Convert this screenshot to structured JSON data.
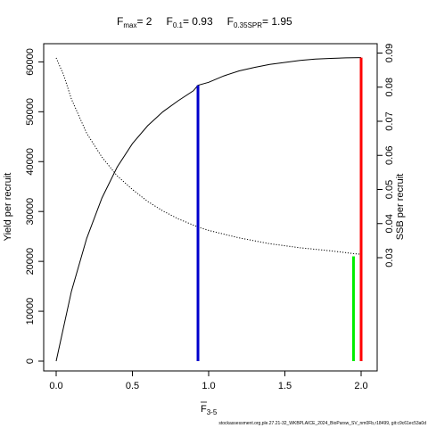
{
  "title": {
    "fmax_label": "F",
    "fmax_sub": "max",
    "fmax_value": "= 2",
    "f01_label": "F",
    "f01_sub": "0.1",
    "f01_value": "= 0.93",
    "fspr_label": "F",
    "fspr_sub": "0.35SPR",
    "fspr_value": "= 1.95"
  },
  "footer": "stockassessment.org,ple.27.21-32_WKBPLAICE_2024_BioParsw_SV_nm0Fb,r18499, git:c9c61ec53a0d",
  "colors": {
    "ypr_line": "#000000",
    "sspr_line": "#000000",
    "fmax": "#ff0000",
    "f01": "#0000cc",
    "fspr": "#00ee00"
  },
  "chart_data": {
    "type": "line",
    "xlabel_main": "F",
    "xlabel_sub": "3-5",
    "ylabel": "Yield per recruit",
    "y2label": "SSB per recruit",
    "xlim": [
      0,
      2
    ],
    "ylim": [
      0,
      61000
    ],
    "y2lim": [
      0,
      0.09
    ],
    "x_ticks": [
      "0.0",
      "0.5",
      "1.0",
      "1.5",
      "2.0"
    ],
    "x_tick_values": [
      0,
      0.5,
      1.0,
      1.5,
      2.0
    ],
    "y_ticks": [
      "0",
      "10000",
      "20000",
      "30000",
      "40000",
      "50000",
      "60000"
    ],
    "y_tick_values": [
      0,
      10000,
      20000,
      30000,
      40000,
      50000,
      60000
    ],
    "y2_ticks": [
      "0.03",
      "0.04",
      "0.05",
      "0.06",
      "0.07",
      "0.08",
      "0.09"
    ],
    "y2_tick_values": [
      0.03,
      0.04,
      0.05,
      0.06,
      0.07,
      0.08,
      0.09
    ],
    "series": [
      {
        "axis": "left",
        "style": "solid",
        "x": [
          0,
          0.1,
          0.2,
          0.3,
          0.4,
          0.5,
          0.6,
          0.7,
          0.8,
          0.9,
          0.93,
          1.0,
          1.1,
          1.2,
          1.3,
          1.4,
          1.5,
          1.6,
          1.7,
          1.8,
          1.9,
          1.95,
          2.0
        ],
        "y": [
          0,
          14000,
          24600,
          32700,
          38900,
          43600,
          47200,
          50000,
          52200,
          54200,
          55300,
          55900,
          57200,
          58200,
          58900,
          59500,
          59900,
          60300,
          60550,
          60700,
          60800,
          60830,
          60850
        ]
      },
      {
        "axis": "right",
        "style": "dotted",
        "x": [
          0,
          0.05,
          0.1,
          0.2,
          0.3,
          0.4,
          0.5,
          0.6,
          0.7,
          0.8,
          0.93,
          1.0,
          1.2,
          1.4,
          1.6,
          1.8,
          1.95,
          2.0
        ],
        "y": [
          0.0886,
          0.0835,
          0.0765,
          0.0665,
          0.0595,
          0.054,
          0.05,
          0.0465,
          0.0437,
          0.0414,
          0.039,
          0.038,
          0.0358,
          0.0341,
          0.0329,
          0.032,
          0.0312,
          0.031
        ]
      }
    ],
    "reference_lines": [
      {
        "name": "F0.1",
        "x": 0.93,
        "y_top": 55300,
        "color": "#0000cc"
      },
      {
        "name": "F0.35SPR",
        "x": 1.95,
        "y_top": 21000,
        "color": "#00ee00"
      },
      {
        "name": "Fmax",
        "x": 2.0,
        "y_top": 60850,
        "color": "#ff0000"
      }
    ]
  }
}
